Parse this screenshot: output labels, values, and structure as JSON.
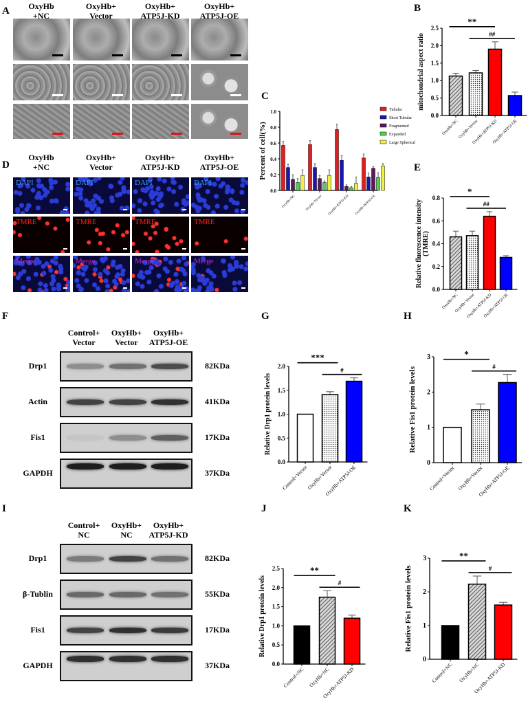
{
  "panel_letters": {
    "A": "A",
    "B": "B",
    "C": "C",
    "D": "D",
    "E": "E",
    "F": "F",
    "G": "G",
    "H": "H",
    "I": "I",
    "J": "J",
    "K": "K"
  },
  "panel_a": {
    "columns": [
      {
        "line1": "OxyHb",
        "line2": "+NC"
      },
      {
        "line1": "OxyHb+",
        "line2": "Vector"
      },
      {
        "line1": "OxyHb+",
        "line2": "ATP5J-KD"
      },
      {
        "line1": "OxyHb+",
        "line2": "ATP5J-OE"
      }
    ],
    "scale_bar_colors": [
      "#000000",
      "#ffffff",
      "#e01010"
    ]
  },
  "panel_d": {
    "columns": [
      {
        "line1": "OxyHb",
        "line2": "+NC"
      },
      {
        "line1": "OxyHb+",
        "line2": "Vector"
      },
      {
        "line1": "OxyHb+",
        "line2": "ATP5J-KD"
      },
      {
        "line1": "OxyHb+",
        "line2": "ATP5J-OE"
      }
    ],
    "rows": [
      {
        "label": "DAPI",
        "color": "#3a9cff"
      },
      {
        "label": "TMRE",
        "color": "#ff2020"
      },
      {
        "label": "Merge",
        "color": "#c030d0"
      }
    ]
  },
  "panel_f": {
    "columns": [
      {
        "line1": "Control+",
        "line2": "Vector"
      },
      {
        "line1": "OxyHb+",
        "line2": "Vector"
      },
      {
        "line1": "OxyHb+",
        "line2": "ATP5J-OE"
      }
    ],
    "rows": [
      {
        "protein": "Drp1",
        "size": "82KDa"
      },
      {
        "protein": "Actin",
        "size": "41KDa"
      },
      {
        "protein": "Fis1",
        "size": "17KDa"
      },
      {
        "protein": "GAPDH",
        "size": "37KDa"
      }
    ]
  },
  "panel_i": {
    "columns": [
      {
        "line1": "Control+",
        "line2": "NC"
      },
      {
        "line1": "OxyHb+",
        "line2": "NC"
      },
      {
        "line1": "OxyHb+",
        "line2": "ATP5J-KD"
      }
    ],
    "rows": [
      {
        "protein": "Drp1",
        "size": "82KDa"
      },
      {
        "protein": "β-Tublin",
        "size": "55KDa"
      },
      {
        "protein": "Fis1",
        "size": "17KDa"
      },
      {
        "protein": "GAPDH",
        "size": "37KDa"
      }
    ]
  },
  "chart_data": [
    {
      "id": "B",
      "type": "bar",
      "categories": [
        "OxyHb+NC",
        "OxyHb+Vector",
        "OxyHb+ATP5J-KD",
        "OxyHb+ATP5J-OE"
      ],
      "values": [
        1.13,
        1.22,
        1.9,
        0.57
      ],
      "errors": [
        0.08,
        0.07,
        0.21,
        0.1
      ],
      "fills": [
        "hatch",
        "dots",
        "#ff0000",
        "#0000ff"
      ],
      "ylabel": [
        "mitochondrial aspect ratio"
      ],
      "ylim": [
        0,
        2.5
      ],
      "yticks": [
        "0.0",
        "0.5",
        "1.0",
        "1.5",
        "2.0",
        "2.5"
      ],
      "annotations": [
        {
          "from": 0,
          "to": 2,
          "text": "**"
        },
        {
          "from": 1,
          "to": 3,
          "text": "##"
        }
      ]
    },
    {
      "id": "C",
      "type": "bar",
      "categories": [
        "OxyHb+NC",
        "OxyHb+Vector",
        "OxyHb+ATP5J-KD",
        "OxyHb+ATP5J-OE"
      ],
      "series": [
        {
          "name": "Tubular",
          "color": "#e02020",
          "values": [
            0.57,
            0.58,
            0.77,
            0.41
          ],
          "errors": [
            0.05,
            0.05,
            0.07,
            0.05
          ]
        },
        {
          "name": "Short Tubular",
          "color": "#1818b0",
          "values": [
            0.29,
            0.29,
            0.38,
            0.17
          ],
          "errors": [
            0.04,
            0.05,
            0.06,
            0.05
          ]
        },
        {
          "name": "Fragmented",
          "color": "#5a1a5a",
          "values": [
            0.14,
            0.15,
            0.05,
            0.28
          ],
          "errors": [
            0.06,
            0.04,
            0.02,
            0.02
          ]
        },
        {
          "name": "Expanded",
          "color": "#50d050",
          "values": [
            0.1,
            0.1,
            0.035,
            0.165
          ],
          "errors": [
            0.05,
            0.02,
            0.015,
            0.06
          ]
        },
        {
          "name": "Large Spherical",
          "color": "#f0f040",
          "values": [
            0.19,
            0.19,
            0.09,
            0.31
          ],
          "errors": [
            0.07,
            0.07,
            0.08,
            0.03
          ]
        }
      ],
      "ylabel": [
        "Percent of cell(%)"
      ],
      "ylim": [
        0,
        1.0
      ],
      "yticks": [
        "0.0",
        "0.2",
        "0.4",
        "0.6",
        "0.8",
        "1.0"
      ],
      "legend": "right"
    },
    {
      "id": "E",
      "type": "bar",
      "categories": [
        "OxyHb+NC",
        "OxyHb+Vector",
        "OxyHb+ATP5J-KD",
        "OxyHb+ATP5J-OE"
      ],
      "values": [
        0.46,
        0.47,
        0.64,
        0.28
      ],
      "errors": [
        0.05,
        0.04,
        0.04,
        0.015
      ],
      "fills": [
        "hatch",
        "dots",
        "#ff0000",
        "#0000ff"
      ],
      "ylabel": [
        "Relative fluorescence intensity",
        "(TMRE)"
      ],
      "ylim": [
        0,
        0.8
      ],
      "yticks": [
        "0.0",
        "0.2",
        "0.4",
        "0.6",
        "0.8"
      ],
      "annotations": [
        {
          "from": 0,
          "to": 2,
          "text": "*"
        },
        {
          "from": 1,
          "to": 3,
          "text": "##"
        }
      ]
    },
    {
      "id": "G",
      "type": "bar",
      "categories": [
        "Control+Vector",
        "OxyHb+Vector",
        "OxyHb+ATP5J-OE"
      ],
      "values": [
        1.0,
        1.41,
        1.69
      ],
      "errors": [
        0,
        0.06,
        0.07
      ],
      "fills": [
        "#ffffff",
        "dots",
        "#0000ff"
      ],
      "ylabel": [
        "Relative  Drp1 protein levels"
      ],
      "ylim": [
        0,
        2.0
      ],
      "yticks": [
        "0.0",
        "0.5",
        "1.0",
        "1.5",
        "2.0"
      ],
      "annotations": [
        {
          "from": 0,
          "to": 1,
          "text": "***"
        },
        {
          "from": 1,
          "to": 2,
          "text": "#"
        }
      ]
    },
    {
      "id": "H",
      "type": "bar",
      "categories": [
        "Control+Vector",
        "OxyHb+Vector",
        "OxyHb+ATP5J-OE"
      ],
      "values": [
        1.0,
        1.5,
        2.27
      ],
      "errors": [
        0,
        0.16,
        0.23
      ],
      "fills": [
        "#ffffff",
        "dots",
        "#0000ff"
      ],
      "ylabel": [
        "Relative  Fis1 protein levels"
      ],
      "ylim": [
        0,
        3
      ],
      "yticks": [
        "0",
        "1",
        "2",
        "3"
      ],
      "annotations": [
        {
          "from": 0,
          "to": 1,
          "text": "*"
        },
        {
          "from": 1,
          "to": 2,
          "text": "#"
        }
      ]
    },
    {
      "id": "J",
      "type": "bar",
      "categories": [
        "Control+NC",
        "OxyHb+NC",
        "OxyHb+ATP5J-KD"
      ],
      "values": [
        1.0,
        1.75,
        1.2
      ],
      "errors": [
        0,
        0.17,
        0.08
      ],
      "fills": [
        "#000000",
        "hatch",
        "#ff0000"
      ],
      "ylabel": [
        "Relative  Drp1 protein levels"
      ],
      "ylim": [
        0,
        2.5
      ],
      "yticks": [
        "0.0",
        "0.5",
        "1.0",
        "1.5",
        "2.0",
        "2.5"
      ],
      "annotations": [
        {
          "from": 0,
          "to": 1,
          "text": "**"
        },
        {
          "from": 1,
          "to": 2,
          "text": "#"
        }
      ]
    },
    {
      "id": "K",
      "type": "bar",
      "categories": [
        "Control+NC",
        "OxyHb+NC",
        "OxyHb+ATP5J-KD"
      ],
      "values": [
        1.0,
        2.23,
        1.61
      ],
      "errors": [
        0,
        0.24,
        0.08
      ],
      "fills": [
        "#000000",
        "hatch",
        "#ff0000"
      ],
      "ylabel": [
        "Relative  Fis1 protein levels"
      ],
      "ylim": [
        0,
        3
      ],
      "yticks": [
        "0",
        "1",
        "2",
        "3"
      ],
      "annotations": [
        {
          "from": 0,
          "to": 1,
          "text": "**"
        },
        {
          "from": 1,
          "to": 2,
          "text": "#"
        }
      ]
    }
  ]
}
